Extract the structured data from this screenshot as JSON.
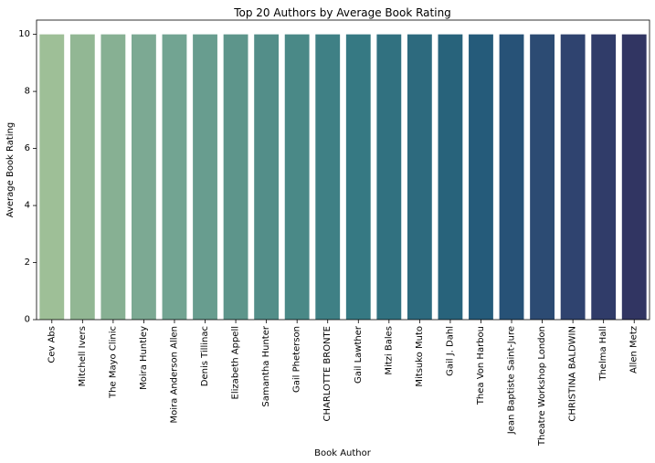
{
  "chart_data": {
    "type": "bar",
    "title": "Top 20 Authors by Average Book Rating",
    "xlabel": "Book Author",
    "ylabel": "Average Book Rating",
    "ylim": [
      0,
      10.5
    ],
    "yticks": [
      0,
      2,
      4,
      6,
      8,
      10
    ],
    "grid": false,
    "legend": "none",
    "palette": "crest",
    "categories": [
      "Cev Abs",
      "Mitchell Ivers",
      "The Mayo Clinic",
      "Moira Huntley",
      "Moira Anderson Allen",
      "Denis Tillinac",
      "Elizabeth Appell",
      "Samantha Hunter",
      "Gail Pheterson",
      "CHARLOTTE BRONTE",
      "Gail Lawther",
      "Mitzi Bales",
      "Mitsuko Muto",
      "Gail J. Dahl",
      "Thea Von Harbou",
      "Jean Baptiste Saint-Jure",
      "Theatre Workshop London",
      "CHRISTINA BALDWIN",
      "Thelma Hall",
      "Allen Metz"
    ],
    "values": [
      10,
      10,
      10,
      10,
      10,
      10,
      10,
      10,
      10,
      10,
      10,
      10,
      10,
      10,
      10,
      10,
      10,
      10,
      10,
      10
    ],
    "colors": [
      "#9ebf97",
      "#92b794",
      "#87b093",
      "#7ca993",
      "#72a492",
      "#689d8f",
      "#5d958b",
      "#538e89",
      "#4a8987",
      "#3f8085",
      "#367983",
      "#317180",
      "#2d6a7e",
      "#28637b",
      "#255b7a",
      "#275277",
      "#2c4b73",
      "#2f436f",
      "#303c69",
      "#313562"
    ]
  }
}
